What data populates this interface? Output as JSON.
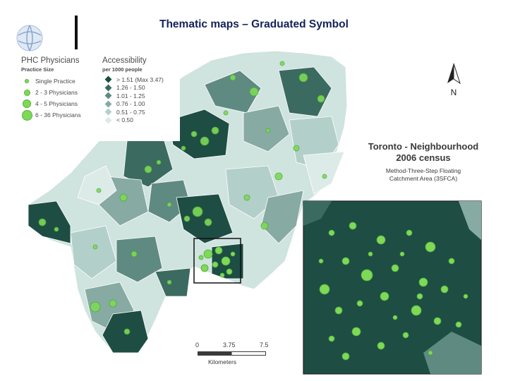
{
  "slide": {
    "title": "Thematic maps – Graduated Symbol"
  },
  "legend": {
    "physicians": {
      "title": "PHC Physicians",
      "subtitle": "Practice Size",
      "items": [
        {
          "label": "Single Practice"
        },
        {
          "label": "2 - 3 Physicians"
        },
        {
          "label": "4 - 5 Physicians"
        },
        {
          "label": "6 - 36 Physicians"
        }
      ]
    },
    "accessibility": {
      "title": "Accessibility",
      "subtitle": "per 1000 people",
      "items": [
        {
          "label": "> 1.51 (Max 3.47)",
          "color": "#1e4d44"
        },
        {
          "label": "1.26 - 1.50",
          "color": "#3b6a60"
        },
        {
          "label": "1.01 - 1.25",
          "color": "#5f8a82"
        },
        {
          "label": "0.76 - 1.00",
          "color": "#87aaa3"
        },
        {
          "label": "0.51 - 0.75",
          "color": "#b3cfc9"
        },
        {
          "label": "< 0.50",
          "color": "#dcebe8"
        }
      ]
    }
  },
  "map_text": {
    "line1": "Toronto - Neighbourhood",
    "line2": "2006 census",
    "line3": "Method-Three-Step Floating",
    "line4": "Catchment Area (3SFCA)"
  },
  "scale_bar": {
    "labels": [
      "0",
      "3.75",
      "7.5"
    ],
    "unit": "Kilometers"
  },
  "north_arrow": {
    "label": "N"
  },
  "colors": {
    "symbol_fill": "#7ed957",
    "symbol_stroke": "#4ea83a",
    "title": "#14215a",
    "inset_bg": "#1e4d44"
  }
}
